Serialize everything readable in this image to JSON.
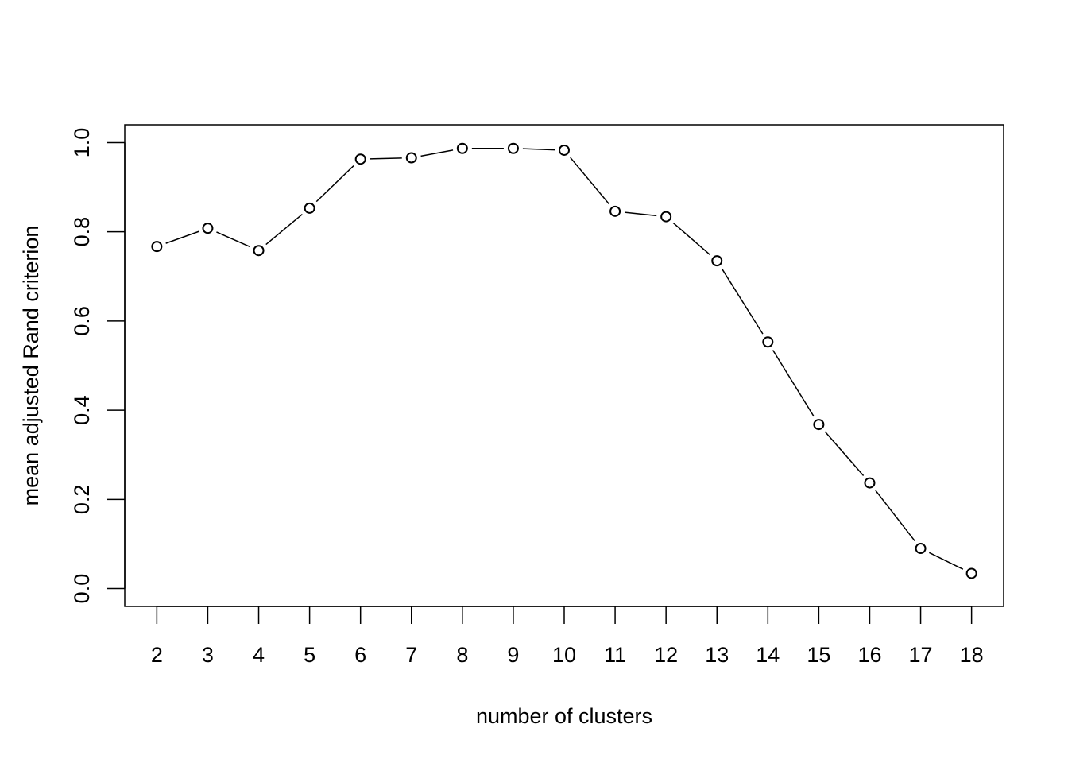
{
  "chart_data": {
    "type": "line",
    "title": "",
    "xlabel": "number of clusters",
    "ylabel": "mean adjusted Rand criterion",
    "x": [
      2,
      3,
      4,
      5,
      6,
      7,
      8,
      9,
      10,
      11,
      12,
      13,
      14,
      15,
      16,
      17,
      18
    ],
    "y": [
      0.767,
      0.808,
      0.758,
      0.853,
      0.963,
      0.966,
      0.987,
      0.987,
      0.983,
      0.846,
      0.834,
      0.735,
      0.553,
      0.368,
      0.237,
      0.09,
      0.034
    ],
    "xlim": [
      1.37,
      18.63
    ],
    "ylim": [
      -0.04,
      1.04
    ],
    "xticks": [
      "2",
      "3",
      "4",
      "5",
      "6",
      "7",
      "8",
      "9",
      "10",
      "11",
      "12",
      "13",
      "14",
      "15",
      "16",
      "17",
      "18"
    ],
    "yticks": [
      "0.0",
      "0.2",
      "0.4",
      "0.6",
      "0.8",
      "1.0"
    ],
    "marker": "open-circle",
    "line_style": "solid with gaps at points",
    "grid": false,
    "legend": "none",
    "colors": {
      "line": "#000000",
      "background": "#ffffff"
    }
  }
}
